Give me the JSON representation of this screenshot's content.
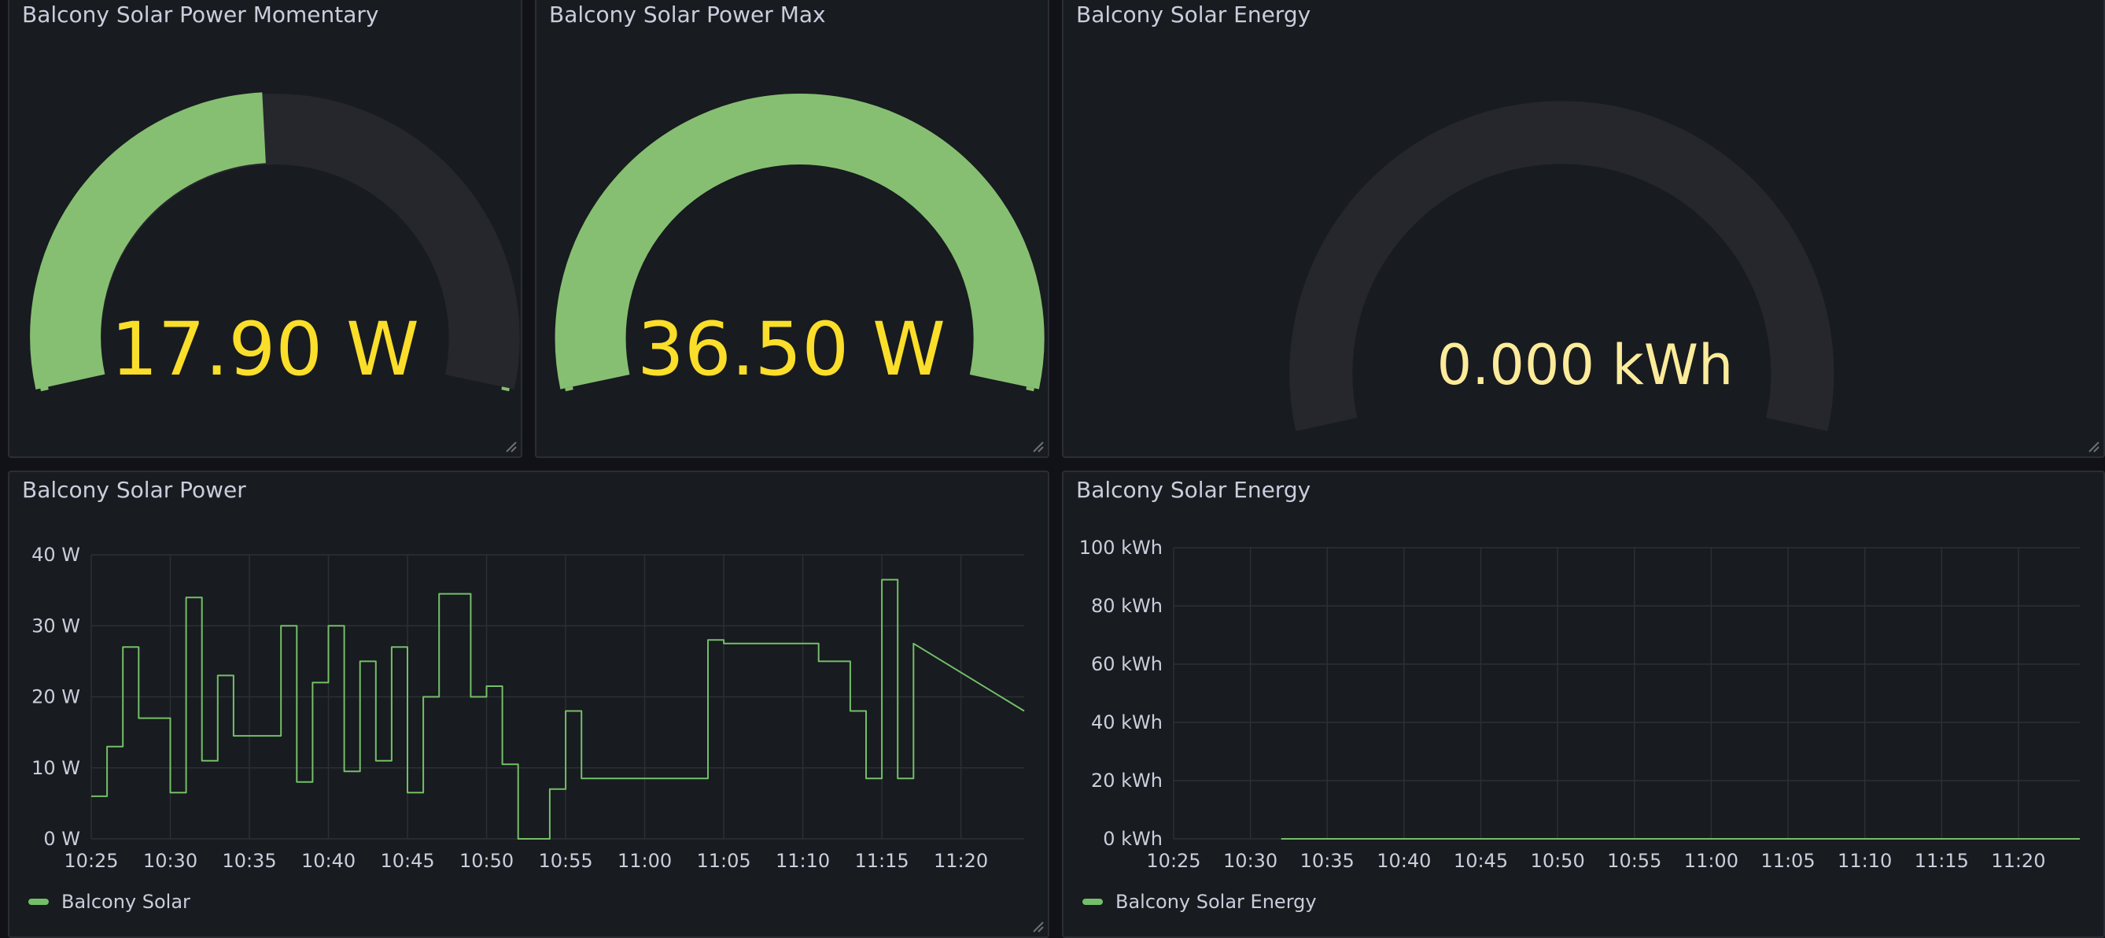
{
  "gauges": [
    {
      "title": "Balcony Solar Power Momentary",
      "value_text": "17.90 W",
      "value": 17.9,
      "min": 0,
      "max": 36.5
    },
    {
      "title": "Balcony Solar Power Max",
      "value_text": "36.50 W",
      "value": 36.5,
      "min": 0,
      "max": 36.5
    },
    {
      "title": "Balcony Solar Energy",
      "value_text": "0.000 kWh",
      "value": 0,
      "min": 0,
      "max": 100
    }
  ],
  "power_chart": {
    "title": "Balcony Solar Power",
    "legend": "Balcony Solar",
    "y_ticks": [
      "0 W",
      "10 W",
      "20 W",
      "30 W",
      "40 W"
    ],
    "x_ticks": [
      "10:25",
      "10:30",
      "10:35",
      "10:40",
      "10:45",
      "10:50",
      "10:55",
      "11:00",
      "11:05",
      "11:10",
      "11:15",
      "11:20"
    ]
  },
  "energy_chart": {
    "title": "Balcony Solar Energy",
    "legend": "Balcony Solar Energy",
    "y_ticks": [
      "0 kWh",
      "20 kWh",
      "40 kWh",
      "60 kWh",
      "80 kWh",
      "100 kWh"
    ],
    "x_ticks": [
      "10:25",
      "10:30",
      "10:35",
      "10:40",
      "10:45",
      "10:50",
      "10:55",
      "11:00",
      "11:05",
      "11:10",
      "11:15",
      "11:20"
    ]
  },
  "colors": {
    "series": "#73bf69",
    "gauge_fill": "#86bf72",
    "gauge_track": "#25272c",
    "value_text": "#fade2a",
    "value_text_dim": "#fceb9a"
  },
  "chart_data": [
    {
      "type": "line",
      "title": "Balcony Solar Power",
      "series": [
        {
          "name": "Balcony Solar",
          "x": [
            "10:25",
            "10:26",
            "10:26",
            "10:27",
            "10:27",
            "10:28",
            "10:28",
            "10:30",
            "10:30",
            "10:31",
            "10:31",
            "10:32",
            "10:32",
            "10:33",
            "10:33",
            "10:34",
            "10:34",
            "10:37",
            "10:37",
            "10:38",
            "10:38",
            "10:39",
            "10:39",
            "10:40",
            "10:40",
            "10:41",
            "10:41",
            "10:42",
            "10:42",
            "10:43",
            "10:43",
            "10:44",
            "10:44",
            "10:45",
            "10:45",
            "10:46",
            "10:46",
            "10:47",
            "10:47",
            "10:49",
            "10:49",
            "10:50",
            "10:50",
            "10:51",
            "10:51",
            "10:52",
            "10:52",
            "10:54",
            "10:54",
            "10:55",
            "10:55",
            "10:56",
            "10:56",
            "11:04",
            "11:04",
            "11:05",
            "11:05",
            "11:11",
            "11:11",
            "11:13",
            "11:13",
            "11:14",
            "11:14",
            "11:15",
            "11:15",
            "11:16",
            "11:16",
            "11:17",
            "11:17",
            "11:24"
          ],
          "values": [
            6,
            6,
            13,
            13,
            27,
            27,
            17,
            17,
            6.5,
            6.5,
            34,
            34,
            11,
            11,
            23,
            23,
            14.5,
            14.5,
            30,
            30,
            8,
            8,
            22,
            22,
            30,
            30,
            9.5,
            9.5,
            25,
            25,
            11,
            11,
            27,
            27,
            6.5,
            6.5,
            20,
            20,
            34.5,
            34.5,
            20,
            20,
            21.5,
            21.5,
            10.5,
            10.5,
            0,
            0,
            7,
            7,
            18,
            18,
            8.5,
            8.5,
            28,
            28,
            27.5,
            27.5,
            25,
            25,
            18,
            18,
            8.5,
            8.5,
            36.5,
            36.5,
            8.5,
            8.5,
            27.5,
            18
          ]
        }
      ],
      "xlabel": "",
      "ylabel": "",
      "ylim": [
        0,
        40
      ],
      "xlim": [
        "10:25",
        "11:24"
      ],
      "grid": true,
      "legend_position": "bottom-left"
    },
    {
      "type": "line",
      "title": "Balcony Solar Energy",
      "series": [
        {
          "name": "Balcony Solar Energy",
          "x": [
            "10:32",
            "11:24"
          ],
          "values": [
            0,
            0
          ]
        }
      ],
      "xlabel": "",
      "ylabel": "",
      "ylim": [
        0,
        100
      ],
      "xlim": [
        "10:25",
        "11:24"
      ],
      "grid": true,
      "legend_position": "bottom-left"
    }
  ]
}
